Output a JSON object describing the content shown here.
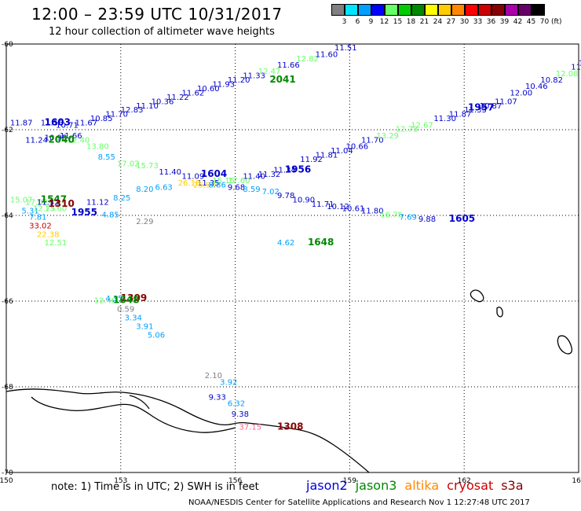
{
  "header": {
    "title": "12:00 – 23:59 UTC 10/31/2017",
    "subtitle": "12 hour collection of altimeter wave heights"
  },
  "colorbar": {
    "unit": "(ft)",
    "bins": [
      {
        "label": "3",
        "color": "#808080"
      },
      {
        "label": "6",
        "color": "#00e5ff"
      },
      {
        "label": "9",
        "color": "#00a0ff"
      },
      {
        "label": "12",
        "color": "#0000ff"
      },
      {
        "label": "15",
        "color": "#66ff66"
      },
      {
        "label": "18",
        "color": "#00cc00"
      },
      {
        "label": "21",
        "color": "#008800"
      },
      {
        "label": "24",
        "color": "#ffff00"
      },
      {
        "label": "27",
        "color": "#ffcc00"
      },
      {
        "label": "30",
        "color": "#ff8800"
      },
      {
        "label": "33",
        "color": "#ff0000"
      },
      {
        "label": "36",
        "color": "#cc0000"
      },
      {
        "label": "39",
        "color": "#880000"
      },
      {
        "label": "42",
        "color": "#aa00aa"
      },
      {
        "label": "45",
        "color": "#660066"
      },
      {
        "label": "70",
        "color": "#000000"
      }
    ]
  },
  "axes": {
    "lon_ticks": [
      "150",
      "153",
      "156",
      "159",
      "162",
      "165"
    ],
    "lat_ticks": [
      "-60",
      "-62",
      "-64",
      "-66",
      "-68",
      "-70"
    ],
    "lon_range": [
      150,
      165
    ],
    "lat_range": [
      -60,
      -70
    ]
  },
  "chart_data": {
    "type": "scatter",
    "points": [
      {
        "lon": 150.1,
        "lat": -61.9,
        "v": "11.87",
        "c": "#0000cc"
      },
      {
        "lon": 150.9,
        "lat": -61.9,
        "v": "11.56",
        "c": "#0000cc"
      },
      {
        "lon": 151.3,
        "lat": -61.95,
        "v": "10.71",
        "c": "#0000cc"
      },
      {
        "lon": 151.8,
        "lat": -61.9,
        "v": "11.67",
        "c": "#0000cc"
      },
      {
        "lon": 152.2,
        "lat": -61.8,
        "v": "10.85",
        "c": "#0000cc"
      },
      {
        "lon": 152.6,
        "lat": -61.7,
        "v": "11.70",
        "c": "#0000cc"
      },
      {
        "lon": 153.0,
        "lat": -61.6,
        "v": "12.83",
        "c": "#0000cc"
      },
      {
        "lon": 153.4,
        "lat": -61.5,
        "v": "11.10",
        "c": "#0000cc"
      },
      {
        "lon": 153.8,
        "lat": -61.4,
        "v": "10.36",
        "c": "#0000cc"
      },
      {
        "lon": 154.2,
        "lat": -61.3,
        "v": "11.22",
        "c": "#0000cc"
      },
      {
        "lon": 154.6,
        "lat": -61.2,
        "v": "11.62",
        "c": "#0000cc"
      },
      {
        "lon": 155.0,
        "lat": -61.1,
        "v": "10.60",
        "c": "#0000cc"
      },
      {
        "lon": 155.4,
        "lat": -61.0,
        "v": "11.93",
        "c": "#0000cc"
      },
      {
        "lon": 155.8,
        "lat": -60.9,
        "v": "11.20",
        "c": "#0000cc"
      },
      {
        "lon": 156.2,
        "lat": -60.8,
        "v": "11.33",
        "c": "#0000cc"
      },
      {
        "lon": 156.6,
        "lat": -60.7,
        "v": "12.47",
        "c": "#66ff66"
      },
      {
        "lon": 157.1,
        "lat": -60.55,
        "v": "11.66",
        "c": "#0000cc"
      },
      {
        "lon": 157.6,
        "lat": -60.4,
        "v": "12.82",
        "c": "#66ff66"
      },
      {
        "lon": 158.1,
        "lat": -60.3,
        "v": "11.60",
        "c": "#0000cc"
      },
      {
        "lon": 158.6,
        "lat": -60.15,
        "v": "11.51",
        "c": "#0000cc"
      },
      {
        "lon": 150.5,
        "lat": -62.3,
        "v": "11.24",
        "c": "#0000cc"
      },
      {
        "lon": 151.0,
        "lat": -62.25,
        "v": "10.95",
        "c": "#0000cc"
      },
      {
        "lon": 151.4,
        "lat": -62.2,
        "v": "11.66",
        "c": "#0000cc"
      },
      {
        "lon": 151.6,
        "lat": -62.3,
        "v": "12.40",
        "c": "#66ff66"
      },
      {
        "lon": 152.1,
        "lat": -62.45,
        "v": "13.80",
        "c": "#66ff66"
      },
      {
        "lon": 152.4,
        "lat": -62.7,
        "v": "8.55",
        "c": "#00a0ff"
      },
      {
        "lon": 152.9,
        "lat": -62.85,
        "v": "17.02",
        "c": "#66ff66"
      },
      {
        "lon": 153.4,
        "lat": -62.9,
        "v": "15.73",
        "c": "#66ff66"
      },
      {
        "lon": 154.0,
        "lat": -63.05,
        "v": "11.40",
        "c": "#0000cc"
      },
      {
        "lon": 154.6,
        "lat": -63.15,
        "v": "11.09",
        "c": "#0000cc"
      },
      {
        "lon": 155.0,
        "lat": -63.3,
        "v": "11.35",
        "c": "#0000cc"
      },
      {
        "lon": 155.4,
        "lat": -63.25,
        "v": "15.15",
        "c": "#66ff66"
      },
      {
        "lon": 155.8,
        "lat": -63.25,
        "v": "17.60",
        "c": "#66ff66"
      },
      {
        "lon": 156.2,
        "lat": -63.15,
        "v": "11.40",
        "c": "#0000cc"
      },
      {
        "lon": 156.6,
        "lat": -63.1,
        "v": "11.32",
        "c": "#0000cc"
      },
      {
        "lon": 157.0,
        "lat": -63.0,
        "v": "11.34",
        "c": "#0000cc"
      },
      {
        "lon": 157.7,
        "lat": -62.75,
        "v": "11.92",
        "c": "#0000cc"
      },
      {
        "lon": 158.1,
        "lat": -62.65,
        "v": "11.81",
        "c": "#0000cc"
      },
      {
        "lon": 158.5,
        "lat": -62.55,
        "v": "11.04",
        "c": "#0000cc"
      },
      {
        "lon": 158.9,
        "lat": -62.45,
        "v": "10.66",
        "c": "#0000cc"
      },
      {
        "lon": 159.3,
        "lat": -62.3,
        "v": "11.70",
        "c": "#0000cc"
      },
      {
        "lon": 159.7,
        "lat": -62.2,
        "v": "13.29",
        "c": "#66ff66"
      },
      {
        "lon": 160.2,
        "lat": -62.05,
        "v": "12.73",
        "c": "#66ff66"
      },
      {
        "lon": 160.6,
        "lat": -61.95,
        "v": "12.67",
        "c": "#66ff66"
      },
      {
        "lon": 161.2,
        "lat": -61.8,
        "v": "11.30",
        "c": "#0000cc"
      },
      {
        "lon": 161.6,
        "lat": -61.7,
        "v": "11.87",
        "c": "#0000cc"
      },
      {
        "lon": 162.0,
        "lat": -61.6,
        "v": "11.33",
        "c": "#0000cc"
      },
      {
        "lon": 162.4,
        "lat": -61.5,
        "v": "10.87",
        "c": "#0000cc"
      },
      {
        "lon": 162.8,
        "lat": -61.4,
        "v": "11.07",
        "c": "#0000cc"
      },
      {
        "lon": 163.2,
        "lat": -61.2,
        "v": "12.00",
        "c": "#0000cc"
      },
      {
        "lon": 163.6,
        "lat": -61.05,
        "v": "10.46",
        "c": "#0000cc"
      },
      {
        "lon": 164.0,
        "lat": -60.9,
        "v": "10.82",
        "c": "#0000cc"
      },
      {
        "lon": 164.4,
        "lat": -60.75,
        "v": "12.08",
        "c": "#66ff66"
      },
      {
        "lon": 164.8,
        "lat": -60.6,
        "v": "11.58",
        "c": "#0000cc"
      },
      {
        "lon": 165.0,
        "lat": -60.5,
        "v": "11",
        "c": "#0000cc"
      },
      {
        "lon": 150.1,
        "lat": -63.7,
        "v": "15.07",
        "c": "#66ff66"
      },
      {
        "lon": 150.5,
        "lat": -63.75,
        "v": "17.02",
        "c": "#66ff66"
      },
      {
        "lon": 150.8,
        "lat": -63.75,
        "v": "11.32",
        "c": "#0000cc"
      },
      {
        "lon": 152.1,
        "lat": -63.75,
        "v": "11.12",
        "c": "#0000cc"
      },
      {
        "lon": 152.8,
        "lat": -63.65,
        "v": "8.25",
        "c": "#00a0ff"
      },
      {
        "lon": 153.4,
        "lat": -63.45,
        "v": "8.20",
        "c": "#00a0ff"
      },
      {
        "lon": 153.9,
        "lat": -63.4,
        "v": "6.63",
        "c": "#00a0ff"
      },
      {
        "lon": 154.5,
        "lat": -63.3,
        "v": "26.18",
        "c": "#ffcc00"
      },
      {
        "lon": 154.9,
        "lat": -63.35,
        "v": "25.94",
        "c": "#ffcc00"
      },
      {
        "lon": 155.3,
        "lat": -63.35,
        "v": "8.86",
        "c": "#00a0ff"
      },
      {
        "lon": 155.8,
        "lat": -63.4,
        "v": "9.68",
        "c": "#0000cc"
      },
      {
        "lon": 156.2,
        "lat": -63.45,
        "v": "8.59",
        "c": "#00a0ff"
      },
      {
        "lon": 156.7,
        "lat": -63.5,
        "v": "7.02",
        "c": "#00a0ff"
      },
      {
        "lon": 157.1,
        "lat": -63.6,
        "v": "9.78",
        "c": "#0000cc"
      },
      {
        "lon": 157.5,
        "lat": -63.7,
        "v": "10.90",
        "c": "#0000cc"
      },
      {
        "lon": 158.0,
        "lat": -63.8,
        "v": "11.71",
        "c": "#0000cc"
      },
      {
        "lon": 158.4,
        "lat": -63.85,
        "v": "10.12",
        "c": "#0000cc"
      },
      {
        "lon": 158.8,
        "lat": -63.9,
        "v": "10.61",
        "c": "#0000cc"
      },
      {
        "lon": 159.3,
        "lat": -63.95,
        "v": "11.80",
        "c": "#0000cc"
      },
      {
        "lon": 159.8,
        "lat": -64.05,
        "v": "16.75",
        "c": "#66ff66"
      },
      {
        "lon": 160.3,
        "lat": -64.1,
        "v": "7.69",
        "c": "#00a0ff"
      },
      {
        "lon": 160.8,
        "lat": -64.15,
        "v": "9.88",
        "c": "#0000cc"
      },
      {
        "lon": 150.4,
        "lat": -63.95,
        "v": "5.31",
        "c": "#00a0ff"
      },
      {
        "lon": 150.7,
        "lat": -63.9,
        "v": "12.75",
        "c": "#66ff66"
      },
      {
        "lon": 151.0,
        "lat": -63.9,
        "v": "13.60",
        "c": "#66ff66"
      },
      {
        "lon": 150.6,
        "lat": -64.1,
        "v": "7.81",
        "c": "#00a0ff"
      },
      {
        "lon": 150.6,
        "lat": -64.3,
        "v": "33.02",
        "c": "#cc0000"
      },
      {
        "lon": 150.8,
        "lat": -64.5,
        "v": "22.38",
        "c": "#ffcc00"
      },
      {
        "lon": 151.0,
        "lat": -64.7,
        "v": "12.51",
        "c": "#66ff66"
      },
      {
        "lon": 152.5,
        "lat": -64.05,
        "v": "4.85",
        "c": "#00a0ff"
      },
      {
        "lon": 153.4,
        "lat": -64.2,
        "v": "2.29",
        "c": "#808080"
      },
      {
        "lon": 157.1,
        "lat": -64.7,
        "v": "4.62",
        "c": "#00a0ff"
      },
      {
        "lon": 152.3,
        "lat": -66.05,
        "v": "12.40",
        "c": "#66ff66"
      },
      {
        "lon": 152.6,
        "lat": -66.0,
        "v": "4.35",
        "c": "#00a0ff"
      },
      {
        "lon": 152.9,
        "lat": -66.25,
        "v": "0.59",
        "c": "#808080"
      },
      {
        "lon": 153.1,
        "lat": -66.45,
        "v": "3.34",
        "c": "#00a0ff"
      },
      {
        "lon": 153.4,
        "lat": -66.65,
        "v": "3.91",
        "c": "#00a0ff"
      },
      {
        "lon": 153.7,
        "lat": -66.85,
        "v": "5.06",
        "c": "#00a0ff"
      },
      {
        "lon": 155.2,
        "lat": -67.8,
        "v": "2.10",
        "c": "#808080"
      },
      {
        "lon": 155.6,
        "lat": -67.95,
        "v": "3.92",
        "c": "#00a0ff"
      },
      {
        "lon": 155.3,
        "lat": -68.3,
        "v": "9.33",
        "c": "#0000cc"
      },
      {
        "lon": 155.8,
        "lat": -68.45,
        "v": "6.32",
        "c": "#00a0ff"
      },
      {
        "lon": 155.9,
        "lat": -68.7,
        "v": "9.38",
        "c": "#0000cc"
      },
      {
        "lon": 156.1,
        "lat": -69.0,
        "v": "37.15",
        "c": "#ff6688"
      }
    ],
    "times": [
      {
        "lon": 151.0,
        "lat": -61.9,
        "v": "1603",
        "c": "#0000cc"
      },
      {
        "lon": 151.1,
        "lat": -62.3,
        "v": "2040",
        "c": "#008800"
      },
      {
        "lon": 156.9,
        "lat": -60.9,
        "v": "2041",
        "c": "#008800"
      },
      {
        "lon": 155.1,
        "lat": -63.1,
        "v": "1604",
        "c": "#0000cc"
      },
      {
        "lon": 157.3,
        "lat": -63.0,
        "v": "1956",
        "c": "#0000cc"
      },
      {
        "lon": 162.1,
        "lat": -61.55,
        "v": "1957",
        "c": "#0000cc"
      },
      {
        "lon": 150.9,
        "lat": -63.7,
        "v": "1547",
        "c": "#008800"
      },
      {
        "lon": 151.1,
        "lat": -63.8,
        "v": "1310",
        "c": "#880000"
      },
      {
        "lon": 151.7,
        "lat": -64.0,
        "v": "1955",
        "c": "#0000cc"
      },
      {
        "lon": 161.6,
        "lat": -64.15,
        "v": "1605",
        "c": "#0000cc"
      },
      {
        "lon": 157.9,
        "lat": -64.7,
        "v": "1648",
        "c": "#008800"
      },
      {
        "lon": 153.0,
        "lat": -66.0,
        "v": "1309",
        "c": "#880000"
      },
      {
        "lon": 152.8,
        "lat": -66.05,
        "v": "1648",
        "c": "#008800"
      },
      {
        "lon": 157.1,
        "lat": -69.0,
        "v": "1308",
        "c": "#880000"
      }
    ]
  },
  "footer": {
    "note": "note: 1) Time is in UTC; 2) SWH is in feet",
    "legend": [
      {
        "label": "jason2",
        "color": "#0000dd"
      },
      {
        "label": "jason3",
        "color": "#008800"
      },
      {
        "label": "altika",
        "color": "#ff8800"
      },
      {
        "label": "cryosat",
        "color": "#cc0000"
      },
      {
        "label": "s3a",
        "color": "#880000"
      }
    ],
    "credit": "NOAA/NESDIS Center for Satellite Applications and Research    Nov  1 12:27:48 UTC 2017"
  }
}
